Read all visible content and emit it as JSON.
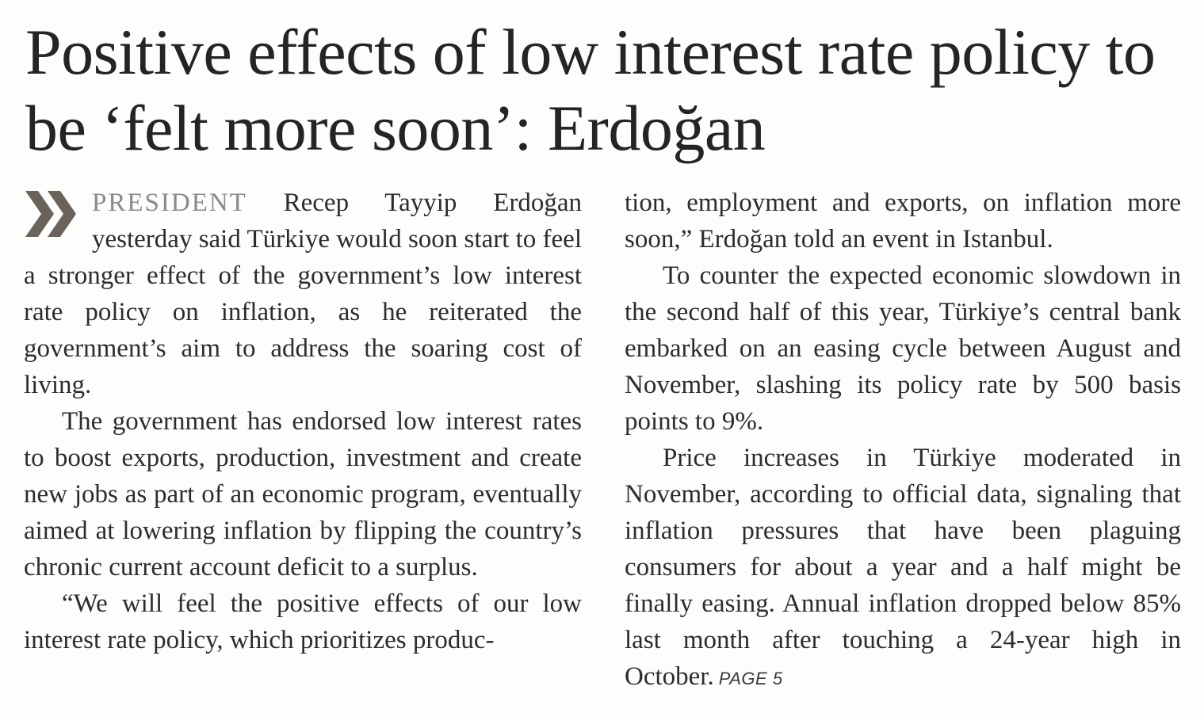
{
  "article": {
    "headline": "Positive effects of low interest rate policy to be ‘felt more soon’: Erdoğan",
    "lead_word": "PRESIDENT",
    "paragraphs": {
      "p1": " Recep Tayyip Erdoğan yesterday said Türkiye would soon start to feel a stronger effect of the government’s low interest rate policy on inflation, as he reiterated the government’s aim to address the soaring cost of living.",
      "p2": "The government has endorsed low interest rates to boost exports, production, investment and create new jobs as part of an economic program, eventually aimed at lowering inflation by flipping the country’s chronic current account deficit to a surplus.",
      "p3_left": "“We will feel the positive effects of our low interest rate policy, which prioritizes produc-",
      "p3_right": "tion, employment and exports, on inflation more soon,” Erdoğan told an event in Istanbul.",
      "p4": "To counter the expected economic slowdown in the second half of this year, Türkiye’s central bank embarked on an easing cycle between August and November, slashing its policy rate by 500 basis points to 9%.",
      "p5": "Price increases in Türkiye moderated in November, according to official data, signaling that inflation pressures that have been plaguing consumers for about a year and a half might be finally easing. Annual inflation dropped below 85% last month after touching a 24-year high in October."
    },
    "page_ref": "PAGE 5",
    "chevron_icon": "double-chevron-right-icon",
    "colors": {
      "text": "#2c2c2c",
      "lead_word": "#8a8a8a",
      "chevron": "#6b625c",
      "background": "#fdfdfb"
    }
  }
}
